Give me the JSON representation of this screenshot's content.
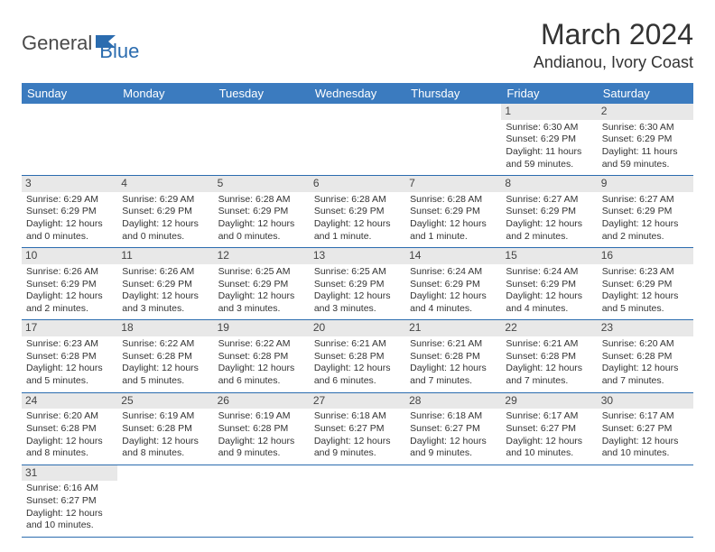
{
  "logo": {
    "part1": "General",
    "part2": "Blue"
  },
  "title": "March 2024",
  "location": "Andianou, Ivory Coast",
  "colors": {
    "header_bg": "#3b7bbf",
    "header_text": "#ffffff",
    "border": "#2b6caf",
    "daynum_bg": "#e8e8e8",
    "logo_blue": "#2b6caf",
    "logo_gray": "#4a4a4a"
  },
  "weekdays": [
    "Sunday",
    "Monday",
    "Tuesday",
    "Wednesday",
    "Thursday",
    "Friday",
    "Saturday"
  ],
  "weeks": [
    [
      {
        "n": "",
        "sr": "",
        "ss": "",
        "dl": ""
      },
      {
        "n": "",
        "sr": "",
        "ss": "",
        "dl": ""
      },
      {
        "n": "",
        "sr": "",
        "ss": "",
        "dl": ""
      },
      {
        "n": "",
        "sr": "",
        "ss": "",
        "dl": ""
      },
      {
        "n": "",
        "sr": "",
        "ss": "",
        "dl": ""
      },
      {
        "n": "1",
        "sr": "Sunrise: 6:30 AM",
        "ss": "Sunset: 6:29 PM",
        "dl": "Daylight: 11 hours and 59 minutes."
      },
      {
        "n": "2",
        "sr": "Sunrise: 6:30 AM",
        "ss": "Sunset: 6:29 PM",
        "dl": "Daylight: 11 hours and 59 minutes."
      }
    ],
    [
      {
        "n": "3",
        "sr": "Sunrise: 6:29 AM",
        "ss": "Sunset: 6:29 PM",
        "dl": "Daylight: 12 hours and 0 minutes."
      },
      {
        "n": "4",
        "sr": "Sunrise: 6:29 AM",
        "ss": "Sunset: 6:29 PM",
        "dl": "Daylight: 12 hours and 0 minutes."
      },
      {
        "n": "5",
        "sr": "Sunrise: 6:28 AM",
        "ss": "Sunset: 6:29 PM",
        "dl": "Daylight: 12 hours and 0 minutes."
      },
      {
        "n": "6",
        "sr": "Sunrise: 6:28 AM",
        "ss": "Sunset: 6:29 PM",
        "dl": "Daylight: 12 hours and 1 minute."
      },
      {
        "n": "7",
        "sr": "Sunrise: 6:28 AM",
        "ss": "Sunset: 6:29 PM",
        "dl": "Daylight: 12 hours and 1 minute."
      },
      {
        "n": "8",
        "sr": "Sunrise: 6:27 AM",
        "ss": "Sunset: 6:29 PM",
        "dl": "Daylight: 12 hours and 2 minutes."
      },
      {
        "n": "9",
        "sr": "Sunrise: 6:27 AM",
        "ss": "Sunset: 6:29 PM",
        "dl": "Daylight: 12 hours and 2 minutes."
      }
    ],
    [
      {
        "n": "10",
        "sr": "Sunrise: 6:26 AM",
        "ss": "Sunset: 6:29 PM",
        "dl": "Daylight: 12 hours and 2 minutes."
      },
      {
        "n": "11",
        "sr": "Sunrise: 6:26 AM",
        "ss": "Sunset: 6:29 PM",
        "dl": "Daylight: 12 hours and 3 minutes."
      },
      {
        "n": "12",
        "sr": "Sunrise: 6:25 AM",
        "ss": "Sunset: 6:29 PM",
        "dl": "Daylight: 12 hours and 3 minutes."
      },
      {
        "n": "13",
        "sr": "Sunrise: 6:25 AM",
        "ss": "Sunset: 6:29 PM",
        "dl": "Daylight: 12 hours and 3 minutes."
      },
      {
        "n": "14",
        "sr": "Sunrise: 6:24 AM",
        "ss": "Sunset: 6:29 PM",
        "dl": "Daylight: 12 hours and 4 minutes."
      },
      {
        "n": "15",
        "sr": "Sunrise: 6:24 AM",
        "ss": "Sunset: 6:29 PM",
        "dl": "Daylight: 12 hours and 4 minutes."
      },
      {
        "n": "16",
        "sr": "Sunrise: 6:23 AM",
        "ss": "Sunset: 6:29 PM",
        "dl": "Daylight: 12 hours and 5 minutes."
      }
    ],
    [
      {
        "n": "17",
        "sr": "Sunrise: 6:23 AM",
        "ss": "Sunset: 6:28 PM",
        "dl": "Daylight: 12 hours and 5 minutes."
      },
      {
        "n": "18",
        "sr": "Sunrise: 6:22 AM",
        "ss": "Sunset: 6:28 PM",
        "dl": "Daylight: 12 hours and 5 minutes."
      },
      {
        "n": "19",
        "sr": "Sunrise: 6:22 AM",
        "ss": "Sunset: 6:28 PM",
        "dl": "Daylight: 12 hours and 6 minutes."
      },
      {
        "n": "20",
        "sr": "Sunrise: 6:21 AM",
        "ss": "Sunset: 6:28 PM",
        "dl": "Daylight: 12 hours and 6 minutes."
      },
      {
        "n": "21",
        "sr": "Sunrise: 6:21 AM",
        "ss": "Sunset: 6:28 PM",
        "dl": "Daylight: 12 hours and 7 minutes."
      },
      {
        "n": "22",
        "sr": "Sunrise: 6:21 AM",
        "ss": "Sunset: 6:28 PM",
        "dl": "Daylight: 12 hours and 7 minutes."
      },
      {
        "n": "23",
        "sr": "Sunrise: 6:20 AM",
        "ss": "Sunset: 6:28 PM",
        "dl": "Daylight: 12 hours and 7 minutes."
      }
    ],
    [
      {
        "n": "24",
        "sr": "Sunrise: 6:20 AM",
        "ss": "Sunset: 6:28 PM",
        "dl": "Daylight: 12 hours and 8 minutes."
      },
      {
        "n": "25",
        "sr": "Sunrise: 6:19 AM",
        "ss": "Sunset: 6:28 PM",
        "dl": "Daylight: 12 hours and 8 minutes."
      },
      {
        "n": "26",
        "sr": "Sunrise: 6:19 AM",
        "ss": "Sunset: 6:28 PM",
        "dl": "Daylight: 12 hours and 9 minutes."
      },
      {
        "n": "27",
        "sr": "Sunrise: 6:18 AM",
        "ss": "Sunset: 6:27 PM",
        "dl": "Daylight: 12 hours and 9 minutes."
      },
      {
        "n": "28",
        "sr": "Sunrise: 6:18 AM",
        "ss": "Sunset: 6:27 PM",
        "dl": "Daylight: 12 hours and 9 minutes."
      },
      {
        "n": "29",
        "sr": "Sunrise: 6:17 AM",
        "ss": "Sunset: 6:27 PM",
        "dl": "Daylight: 12 hours and 10 minutes."
      },
      {
        "n": "30",
        "sr": "Sunrise: 6:17 AM",
        "ss": "Sunset: 6:27 PM",
        "dl": "Daylight: 12 hours and 10 minutes."
      }
    ],
    [
      {
        "n": "31",
        "sr": "Sunrise: 6:16 AM",
        "ss": "Sunset: 6:27 PM",
        "dl": "Daylight: 12 hours and 10 minutes."
      },
      {
        "n": "",
        "sr": "",
        "ss": "",
        "dl": ""
      },
      {
        "n": "",
        "sr": "",
        "ss": "",
        "dl": ""
      },
      {
        "n": "",
        "sr": "",
        "ss": "",
        "dl": ""
      },
      {
        "n": "",
        "sr": "",
        "ss": "",
        "dl": ""
      },
      {
        "n": "",
        "sr": "",
        "ss": "",
        "dl": ""
      },
      {
        "n": "",
        "sr": "",
        "ss": "",
        "dl": ""
      }
    ]
  ]
}
